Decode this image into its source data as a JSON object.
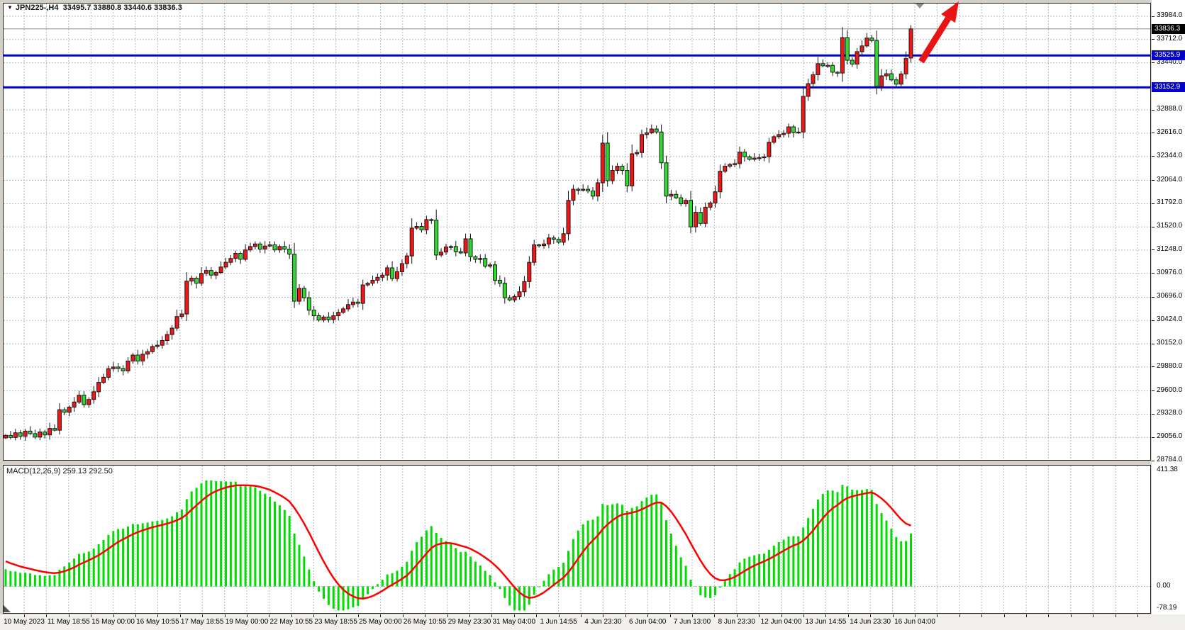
{
  "title": {
    "icon": "▼",
    "symbol": "JPN225-,H4",
    "ohlc": "33495.7 33880.8 33440.6 33836.3"
  },
  "macd": {
    "label": "MACD(12,26,9)",
    "value_main": "259.13",
    "value_signal": "292.50"
  },
  "price_axis": {
    "ticks": [
      33984.0,
      33712.0,
      33440.0,
      32888.0,
      32616.0,
      32344.0,
      32064.0,
      31792.0,
      31520.0,
      31248.0,
      30976.0,
      30696.0,
      30424.0,
      30152.0,
      29880.0,
      29600.0,
      29328.0,
      29056.0,
      28784.0
    ],
    "current_price": "33836.3",
    "level_badges": [
      "33525.9",
      "33152.9"
    ]
  },
  "macd_axis": {
    "ticks": [
      {
        "label": "411.38",
        "value": 411.38
      },
      {
        "label": "0.00",
        "value": 0
      },
      {
        "label": "-78.19",
        "value": -78.19
      }
    ]
  },
  "time_axis": {
    "labels": [
      "10 May 2023",
      "11 May 18:55",
      "15 May 00:00",
      "16 May 10:55",
      "17 May 18:55",
      "19 May 00:00",
      "22 May 10:55",
      "23 May 18:55",
      "25 May 00:00",
      "26 May 10:55",
      "29 May 23:30",
      "31 May 04:00",
      "1 Jun 14:55",
      "4 Jun 23:30",
      "6 Jun 04:00",
      "7 Jun 13:00",
      "8 Jun 23:30",
      "12 Jun 04:00",
      "13 Jun 14:55",
      "14 Jun 23:30",
      "16 Jun 04:00"
    ]
  },
  "chart_data": {
    "type": "candlestick",
    "symbol": "JPN225-",
    "timeframe": "H4",
    "title": "JPN225-,H4",
    "last_candle": {
      "open": 33495.7,
      "high": 33880.8,
      "low": 33440.6,
      "close": 33836.3
    },
    "current_price": 33836.3,
    "horizontal_lines": [
      33525.9,
      33152.9
    ],
    "price_axis_range": [
      28784.0,
      33984.0
    ],
    "grid": "dashed",
    "closes": [
      29080,
      29055,
      29110,
      29070,
      29130,
      29100,
      29060,
      29120,
      29085,
      29160,
      29140,
      29380,
      29350,
      29410,
      29470,
      29550,
      29440,
      29500,
      29590,
      29700,
      29760,
      29860,
      29880,
      29862,
      29835,
      29950,
      30020,
      29950,
      30030,
      30060,
      30120,
      30135,
      30190,
      30260,
      30335,
      30470,
      30500,
      30885,
      30920,
      30860,
      30975,
      31010,
      30955,
      30985,
      31050,
      31105,
      31150,
      31210,
      31140,
      31250,
      31290,
      31320,
      31260,
      31295,
      31310,
      31250,
      31290,
      31260,
      31200,
      30650,
      30800,
      30690,
      30545,
      30480,
      30430,
      30465,
      30435,
      30480,
      30520,
      30560,
      30610,
      30640,
      30625,
      30840,
      30860,
      30895,
      30930,
      30955,
      31040,
      30915,
      30995,
      31090,
      31180,
      31505,
      31525,
      31485,
      31605,
      31600,
      31190,
      31225,
      31285,
      31290,
      31230,
      31215,
      31380,
      31170,
      31140,
      31150,
      31060,
      31075,
      30895,
      30860,
      30690,
      30665,
      30705,
      30760,
      30880,
      31105,
      31310,
      31300,
      31320,
      31390,
      31375,
      31340,
      31440,
      31830,
      31960,
      31950,
      31960,
      31940,
      31880,
      32035,
      32500,
      32060,
      32180,
      32230,
      32180,
      32000,
      32375,
      32390,
      32600,
      32620,
      32665,
      32630,
      32270,
      31880,
      31900,
      31860,
      31790,
      31830,
      31520,
      31690,
      31560,
      31750,
      31800,
      31930,
      32170,
      32230,
      32250,
      32260,
      32395,
      32340,
      32310,
      32325,
      32330,
      32340,
      32510,
      32575,
      32600,
      32615,
      32690,
      32625,
      32630,
      33047,
      33196,
      33300,
      33430,
      33405,
      33410,
      33330,
      33320,
      33735,
      33470,
      33425,
      33570,
      33637,
      33730,
      33700,
      33163,
      33287,
      33312,
      33240,
      33190,
      33310,
      33490,
      33836
    ],
    "macd_panel": {
      "type": "macd",
      "params": [
        12,
        26,
        9
      ],
      "macd_current": 259.13,
      "signal_current": 292.5,
      "axis_max": 411.38,
      "axis_min": -78.19
    }
  },
  "colors": {
    "bull": "#F21616",
    "bear": "#2EDB2E",
    "candle_outline": "#161616",
    "grid": "#9AA5B1",
    "level_line": "#0202C8",
    "current_price_line": "#8a8a8a",
    "macd_bar": "#00DC00",
    "macd_signal": "#FF0000",
    "arrow": "#E81414",
    "badge_current_bg": "#000000",
    "badge_level_bg": "#0202C8",
    "panel_bg": "#FFFFFF",
    "frame_bg": "#D4D0C8",
    "shift_marker": "#909090"
  }
}
